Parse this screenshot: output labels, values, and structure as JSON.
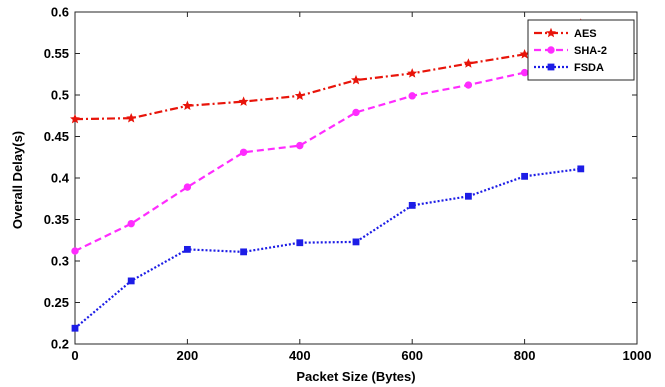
{
  "chart_data": {
    "type": "line",
    "title": "",
    "xlabel": "Packet Size (Bytes)",
    "ylabel": "Overall Delay(s)",
    "xlim": [
      0,
      1000
    ],
    "ylim": [
      0.2,
      0.6
    ],
    "x_ticks": [
      "0",
      "200",
      "400",
      "600",
      "800",
      "1000"
    ],
    "y_ticks": [
      "0.2",
      "0.25",
      "0.3",
      "0.35",
      "0.4",
      "0.45",
      "0.5",
      "0.55",
      "0.6"
    ],
    "x_tick_values": [
      0,
      200,
      400,
      600,
      800,
      1000
    ],
    "y_tick_values": [
      0.2,
      0.25,
      0.3,
      0.35,
      0.4,
      0.45,
      0.5,
      0.55,
      0.6
    ],
    "grid": false,
    "legend_position": "top-right",
    "x": [
      0,
      100,
      200,
      300,
      400,
      500,
      600,
      700,
      800,
      900
    ],
    "series": [
      {
        "name": "AES",
        "color": "#e8140a",
        "line_style": "dash-dot",
        "marker": "star",
        "values": [
          0.471,
          0.472,
          0.487,
          0.492,
          0.499,
          0.518,
          0.526,
          0.538,
          0.549,
          0.586
        ]
      },
      {
        "name": "SHA-2",
        "color": "#ff2cff",
        "line_style": "dashed",
        "marker": "circle",
        "values": [
          0.312,
          0.345,
          0.389,
          0.431,
          0.439,
          0.479,
          0.499,
          0.512,
          0.527,
          0.558
        ]
      },
      {
        "name": "FSDA",
        "color": "#1d1de6",
        "line_style": "dotted",
        "marker": "square",
        "values": [
          0.219,
          0.276,
          0.314,
          0.311,
          0.322,
          0.323,
          0.367,
          0.378,
          0.402,
          0.411
        ]
      }
    ]
  }
}
